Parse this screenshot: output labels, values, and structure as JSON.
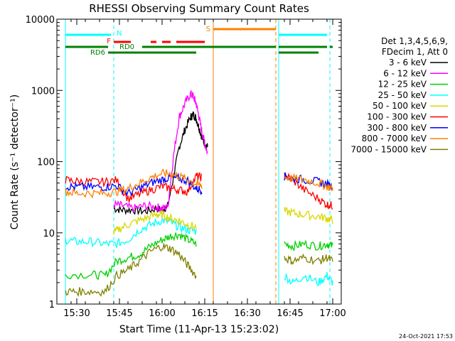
{
  "chart_data": {
    "type": "line",
    "title": "RHESSI Observing Summary Count Rates",
    "xlabel": "Start Time (11-Apr-13 15:23:02)",
    "ylabel": "Count Rate (s⁻¹ detector⁻¹)",
    "yscale": "log",
    "ylim": [
      1,
      10000
    ],
    "xlim": [
      "15:23",
      "17:03"
    ],
    "x_ticks": [
      "15:30",
      "15:45",
      "16:00",
      "16:15",
      "16:30",
      "16:45",
      "17:00"
    ],
    "y_ticks": [
      "1",
      "10",
      "100",
      "1000",
      "10000"
    ],
    "grid": false,
    "legend_position": "right",
    "legend_header": [
      "Det 1,3,4,5,6,9,",
      "FDecim 1, Att 0"
    ],
    "timestamp": "24-Oct-2021 17:53",
    "series": [
      {
        "name": "3 - 6 keV",
        "color": "#000000",
        "x": [
          "15:43",
          "15:46",
          "15:50",
          "15:54",
          "15:58",
          "16:00",
          "16:02",
          "16:04",
          "16:06",
          "16:08",
          "16:10",
          "16:11",
          "16:12",
          "16:13",
          "16:14",
          "16:15",
          "16:16"
        ],
        "values": [
          22,
          21,
          21,
          20,
          22,
          21,
          24,
          60,
          160,
          280,
          420,
          460,
          400,
          300,
          220,
          180,
          160
        ]
      },
      {
        "name": "6 - 12 keV",
        "color": "#ff00ff",
        "x": [
          "15:43",
          "15:46",
          "15:50",
          "15:54",
          "15:58",
          "16:00",
          "16:02",
          "16:04",
          "16:06",
          "16:08",
          "16:10",
          "16:11",
          "16:12",
          "16:13",
          "16:14",
          "16:15",
          "16:16"
        ],
        "values": [
          25,
          24,
          22,
          24,
          23,
          22,
          23,
          120,
          420,
          650,
          900,
          820,
          650,
          420,
          260,
          180,
          130
        ]
      },
      {
        "name": "12 - 25 keV",
        "color": "#00d000",
        "x": [
          "15:26",
          "15:35",
          "15:40",
          "15:44",
          "15:48",
          "15:52",
          "15:56",
          "16:00",
          "16:03",
          "16:06",
          "16:09",
          "16:12",
          "16:18",
          "16:41",
          "16:43",
          "16:46",
          "16:50",
          "16:55",
          "16:58",
          "17:00"
        ],
        "values": [
          2.6,
          2.6,
          2.5,
          4,
          4.5,
          5,
          6.5,
          8,
          9,
          9.5,
          8,
          7,
          null,
          null,
          7,
          6.5,
          7,
          6.5,
          7,
          6.5
        ]
      },
      {
        "name": "25 - 50 keV",
        "color": "#00ffff",
        "x": [
          "15:26",
          "15:30",
          "15:35",
          "15:40",
          "15:44",
          "15:48",
          "15:52",
          "15:56",
          "16:00",
          "16:03",
          "16:06",
          "16:09",
          "16:12",
          "16:18",
          "16:41",
          "16:43",
          "16:46",
          "16:50",
          "16:55",
          "16:58",
          "17:00"
        ],
        "values": [
          8,
          7.5,
          7.5,
          7,
          7,
          8,
          11,
          13,
          15,
          14,
          12,
          11,
          10.5,
          null,
          null,
          2.5,
          2,
          2.5,
          2,
          2.5,
          2
        ]
      },
      {
        "name": "50 - 100 keV",
        "color": "#d8d800",
        "x": [
          "15:43",
          "15:46",
          "15:50",
          "15:54",
          "15:58",
          "16:00",
          "16:03",
          "16:06",
          "16:09",
          "16:12",
          "16:18",
          "16:41",
          "16:43",
          "16:46",
          "16:50",
          "16:55",
          "16:58",
          "17:00"
        ],
        "values": [
          10,
          12,
          14,
          16,
          18,
          18,
          16,
          15,
          13,
          12,
          null,
          null,
          20,
          19,
          18,
          17,
          16,
          15
        ]
      },
      {
        "name": "100 - 300 keV",
        "color": "#ff0000",
        "x": [
          "15:26",
          "15:30",
          "15:35",
          "15:40",
          "15:44",
          "15:48",
          "15:52",
          "15:56",
          "16:00",
          "16:03",
          "16:06",
          "16:09",
          "16:12",
          "16:14",
          "16:18",
          "16:41",
          "16:43",
          "16:46",
          "16:50",
          "16:55",
          "16:58",
          "17:00"
        ],
        "values": [
          55,
          53,
          52,
          52,
          55,
          30,
          35,
          40,
          45,
          42,
          40,
          38,
          62,
          60,
          null,
          null,
          65,
          55,
          40,
          30,
          25,
          24
        ]
      },
      {
        "name": "300 - 800 keV",
        "color": "#0000ff",
        "x": [
          "15:26",
          "15:30",
          "15:35",
          "15:40",
          "15:44",
          "15:48",
          "15:52",
          "15:56",
          "16:00",
          "16:03",
          "16:06",
          "16:09",
          "16:12",
          "16:14",
          "16:18",
          "16:41",
          "16:43",
          "16:46",
          "16:50",
          "16:55",
          "16:58",
          "17:00"
        ],
        "values": [
          45,
          44,
          44,
          44,
          46,
          36,
          42,
          50,
          56,
          60,
          58,
          54,
          42,
          40,
          null,
          null,
          62,
          58,
          56,
          52,
          48,
          45
        ]
      },
      {
        "name": "800 - 7000 keV",
        "color": "#ff8000",
        "x": [
          "15:26",
          "15:30",
          "15:35",
          "15:40",
          "15:44",
          "15:48",
          "15:52",
          "15:56",
          "16:00",
          "16:03",
          "16:06",
          "16:09",
          "16:12",
          "16:14",
          "16:18",
          "16:41",
          "16:43",
          "16:46",
          "16:50",
          "16:55",
          "16:58",
          "17:00"
        ],
        "values": [
          38,
          36,
          36,
          36,
          38,
          42,
          50,
          60,
          68,
          68,
          62,
          56,
          48,
          46,
          null,
          null,
          60,
          58,
          56,
          50,
          45,
          42
        ]
      },
      {
        "name": "7000 - 15000 keV",
        "color": "#808000",
        "x": [
          "15:26",
          "15:30",
          "15:35",
          "15:40",
          "15:44",
          "15:48",
          "15:52",
          "15:56",
          "16:00",
          "16:03",
          "16:06",
          "16:09",
          "16:12",
          "16:18",
          "16:41",
          "16:43",
          "16:46",
          "16:50",
          "16:55",
          "16:58",
          "17:00"
        ],
        "values": [
          1.5,
          1.5,
          1.5,
          1.5,
          2.5,
          3,
          4,
          5.5,
          6.5,
          6,
          5,
          3.5,
          2.5,
          null,
          null,
          4.5,
          4,
          4.5,
          4,
          4.5,
          4
        ]
      }
    ],
    "flag_bars": [
      {
        "label": "N",
        "color": "#00ffff",
        "intervals": [
          [
            "15:26",
            "15:42"
          ],
          [
            "16:41",
            "16:58"
          ]
        ]
      },
      {
        "label": "S",
        "color": "#ff8000",
        "intervals": [
          [
            "16:18",
            "16:40"
          ]
        ]
      },
      {
        "label": "F",
        "color": "#ff0000",
        "intervals": [
          [
            "15:43",
            "15:49"
          ],
          [
            "15:56",
            "15:58"
          ],
          [
            "16:00",
            "16:03"
          ],
          [
            "16:05",
            "16:15"
          ]
        ]
      },
      {
        "label": "RD0",
        "color": "#008000",
        "intervals": [
          [
            "15:26",
            "15:41"
          ],
          [
            "15:53",
            "16:40"
          ],
          [
            "16:41",
            "16:58"
          ],
          [
            "16:59",
            "17:00"
          ]
        ]
      },
      {
        "label": "RD6",
        "color": "#008000",
        "intervals": [
          [
            "15:41",
            "16:12"
          ],
          [
            "16:41",
            "16:55"
          ]
        ]
      }
    ],
    "vlines": [
      {
        "x": "15:26",
        "color": "#00ffff",
        "style": "solid"
      },
      {
        "x": "15:43",
        "color": "#00ffff",
        "style": "dashed"
      },
      {
        "x": "16:18",
        "color": "#ff8000",
        "style": "solid"
      },
      {
        "x": "16:40",
        "color": "#ff8000",
        "style": "dashed"
      },
      {
        "x": "16:41",
        "color": "#00ffff",
        "style": "solid"
      },
      {
        "x": "16:59",
        "color": "#00ffff",
        "style": "dashed"
      }
    ]
  }
}
